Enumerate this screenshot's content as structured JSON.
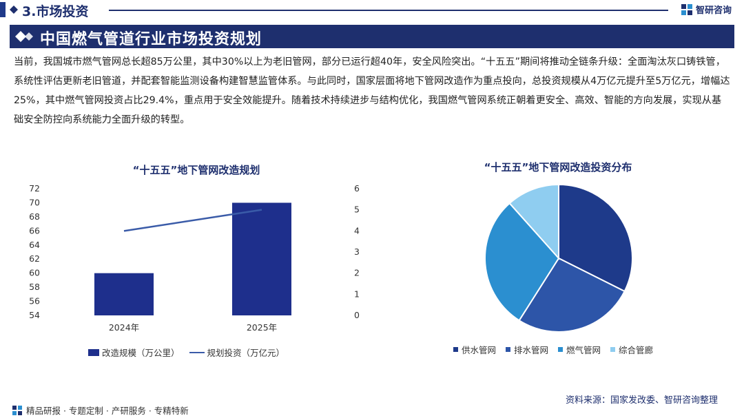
{
  "header": {
    "section_title": "3.市场投资",
    "logo_text": "智研咨询",
    "logo_icon": "zhiyan-logo-icon"
  },
  "title": {
    "text": "中国燃气管道行业市场投资规划"
  },
  "body": {
    "paragraph": "当前，我国城市燃气管网总长超85万公里，其中30%以上为老旧管网，部分已运行超40年，安全风险突出。“十五五”期间将推动全链条升级：全面淘汰灰口铸铁管，系统性评估更新老旧管道，并配套智能监测设备构建智慧监管体系。与此同时，国家层面将地下管网改造作为重点投向，总投资规模从4万亿元提升至5万亿元，增幅达25%，其中燃气管网投资占比29.4%，重点用于安全效能提升。随着技术持续进步与结构优化，我国燃气管网系统正朝着更安全、高效、智能的方向发展，实现从基础安全防控向系统能力全面升级的转型。"
  },
  "chart_data": [
    {
      "type": "bar",
      "title": "“十五五”地下管网改造规划",
      "categories": [
        "2024年",
        "2025年"
      ],
      "y_ticks": [
        "72",
        "70",
        "68",
        "66",
        "64",
        "62",
        "60",
        "58",
        "56",
        "54"
      ],
      "y2_ticks": [
        "6",
        "5",
        "4",
        "3",
        "2",
        "1",
        "0"
      ],
      "ylim": [
        54,
        72
      ],
      "y2lim": [
        0,
        6
      ],
      "series": [
        {
          "name": "改造规模（万公里）",
          "kind": "bar",
          "axis": "left",
          "values": [
            60,
            70
          ],
          "color": "#1e2f8c"
        },
        {
          "name": "规划投资（万亿元）",
          "kind": "line",
          "axis": "right",
          "values": [
            4,
            5
          ],
          "color": "#3a5ba8"
        }
      ],
      "legend_position": "bottom"
    },
    {
      "type": "pie",
      "title": "“十五五”地下管网改造投资分布",
      "slices": [
        {
          "label": "供水管网",
          "value": 32.4,
          "color": "#1e3a8a"
        },
        {
          "label": "排水管网",
          "value": 26.6,
          "color": "#2d55a8"
        },
        {
          "label": "燃气管网",
          "value": 29.4,
          "color": "#2b8fd0"
        },
        {
          "label": "综合管廊",
          "value": 11.6,
          "color": "#8fcdf0"
        }
      ],
      "legend_position": "bottom"
    }
  ],
  "footer": {
    "source": "资料来源：国家发改委、智研咨询整理",
    "tagline": "精品研报 · 专题定制 · 产研服务 · 专精特新"
  }
}
